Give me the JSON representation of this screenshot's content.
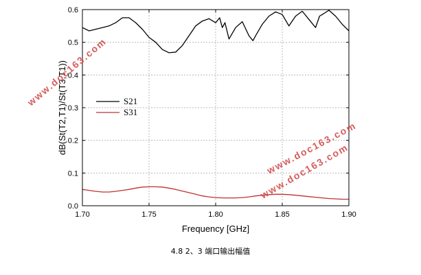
{
  "chart_data": {
    "type": "line",
    "xlabel": "Frequency [GHz]",
    "ylabel": "dB(St(T2,T1)/St(T3,T1))",
    "xlim": [
      1.7,
      1.9
    ],
    "ylim": [
      0.0,
      0.6
    ],
    "x_ticks": [
      "1.70",
      "1.75",
      "1.80",
      "1.85",
      "1.90"
    ],
    "y_ticks": [
      "0.0",
      "0.1",
      "0.2",
      "0.3",
      "0.4",
      "0.5",
      "0.6"
    ],
    "grid": "dashed",
    "legend_position": "center-left",
    "series": [
      {
        "name": "S21",
        "color": "#000000",
        "x": [
          1.7,
          1.705,
          1.71,
          1.715,
          1.72,
          1.725,
          1.73,
          1.735,
          1.74,
          1.745,
          1.75,
          1.755,
          1.76,
          1.765,
          1.77,
          1.775,
          1.78,
          1.785,
          1.79,
          1.795,
          1.8,
          1.803,
          1.805,
          1.807,
          1.81,
          1.815,
          1.82,
          1.825,
          1.828,
          1.83,
          1.835,
          1.84,
          1.845,
          1.85,
          1.855,
          1.86,
          1.865,
          1.87,
          1.875,
          1.878,
          1.88,
          1.885,
          1.89,
          1.895,
          1.9
        ],
        "values": [
          0.545,
          0.535,
          0.54,
          0.545,
          0.55,
          0.56,
          0.575,
          0.575,
          0.56,
          0.54,
          0.515,
          0.5,
          0.478,
          0.468,
          0.47,
          0.49,
          0.52,
          0.55,
          0.565,
          0.572,
          0.56,
          0.575,
          0.545,
          0.56,
          0.51,
          0.545,
          0.563,
          0.52,
          0.505,
          0.52,
          0.555,
          0.58,
          0.593,
          0.585,
          0.55,
          0.58,
          0.595,
          0.57,
          0.545,
          0.58,
          0.585,
          0.598,
          0.58,
          0.555,
          0.535
        ]
      },
      {
        "name": "S31",
        "color": "#c03030",
        "x": [
          1.7,
          1.705,
          1.71,
          1.715,
          1.72,
          1.725,
          1.73,
          1.735,
          1.74,
          1.745,
          1.75,
          1.755,
          1.76,
          1.765,
          1.77,
          1.775,
          1.78,
          1.785,
          1.79,
          1.795,
          1.8,
          1.805,
          1.81,
          1.815,
          1.82,
          1.825,
          1.83,
          1.835,
          1.84,
          1.845,
          1.85,
          1.855,
          1.86,
          1.865,
          1.87,
          1.875,
          1.88,
          1.885,
          1.89,
          1.895,
          1.9
        ],
        "values": [
          0.05,
          0.047,
          0.044,
          0.042,
          0.042,
          0.044,
          0.047,
          0.05,
          0.054,
          0.057,
          0.058,
          0.058,
          0.057,
          0.054,
          0.05,
          0.045,
          0.04,
          0.035,
          0.03,
          0.027,
          0.025,
          0.024,
          0.024,
          0.024,
          0.025,
          0.027,
          0.03,
          0.032,
          0.034,
          0.035,
          0.035,
          0.034,
          0.032,
          0.03,
          0.028,
          0.026,
          0.024,
          0.022,
          0.021,
          0.02,
          0.02
        ]
      }
    ]
  },
  "caption": "4.8 2、3 端口输出幅值",
  "watermarks": [
    "www.doc163.com",
    "www.doc163.com",
    "www.doc163.com"
  ]
}
